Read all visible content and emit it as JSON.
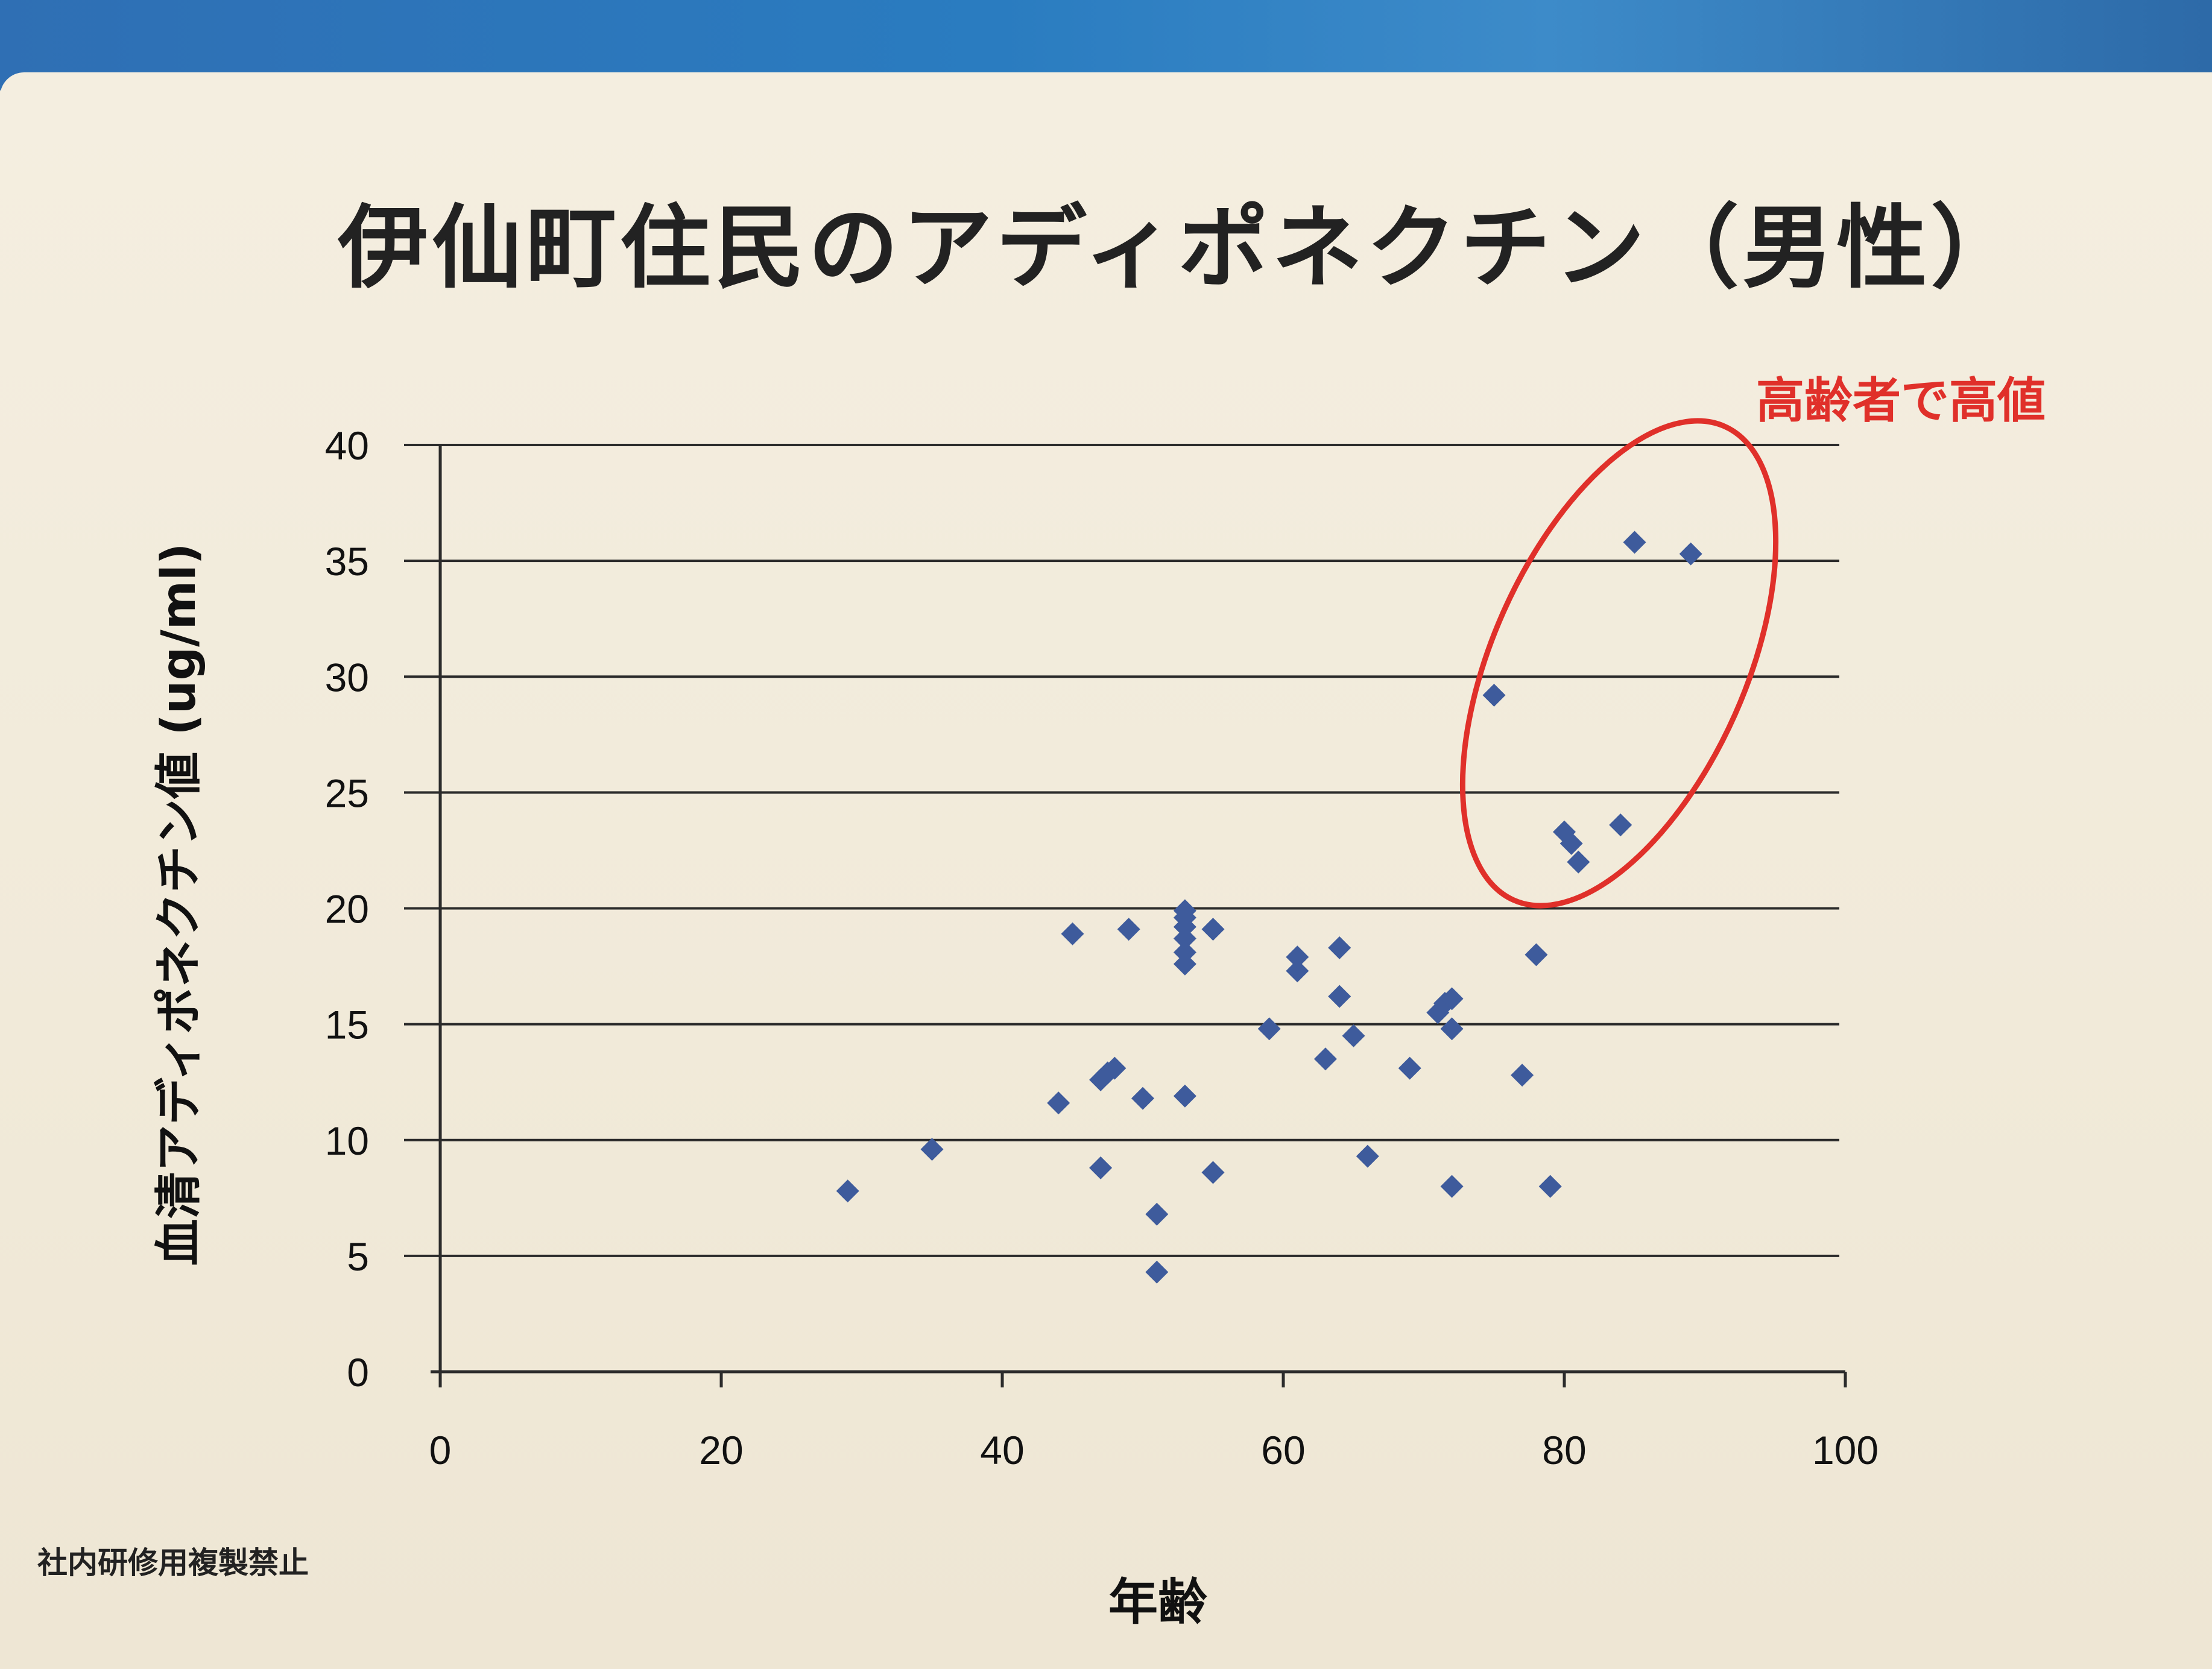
{
  "page": {
    "footer_note": "社内研修用複製禁止",
    "colors": {
      "background": "#f3ecdc",
      "header_band": "#2f6fb4",
      "marker": "#3e5b9c",
      "annotation": "#e0302a",
      "gridline": "#2b2b2b"
    }
  },
  "chart_data": {
    "type": "scatter",
    "title": "伊仙町住民のアディポネクチン（男性）",
    "xlabel": "年齢",
    "ylabel": "血清アディポネクチン値 (ug/ml)",
    "xlim": [
      0,
      100
    ],
    "ylim": [
      0,
      40
    ],
    "x_ticks": [
      0,
      20,
      40,
      60,
      80,
      100
    ],
    "y_ticks": [
      0,
      5,
      10,
      15,
      20,
      25,
      30,
      35,
      40
    ],
    "grid": "horizontal",
    "legend": "none",
    "marker": "diamond",
    "annotation": {
      "text": "高齢者で高値",
      "shape": "ellipse",
      "color": "#e0302a"
    },
    "series": [
      {
        "marker_color": "#3e5b9c",
        "x": [
          29,
          35,
          44,
          45,
          47,
          47,
          47.5,
          48,
          49,
          50,
          51,
          51,
          53,
          53,
          53,
          53,
          53,
          53,
          53,
          55,
          55,
          59,
          61,
          61,
          63,
          64,
          64,
          65,
          66,
          69,
          71,
          71.5,
          72,
          72,
          72,
          75,
          77,
          78,
          79,
          80,
          80.5,
          81,
          84,
          85,
          89
        ],
        "y": [
          7.8,
          9.6,
          11.6,
          18.9,
          12.6,
          8.8,
          12.9,
          13.1,
          19.1,
          11.8,
          6.8,
          4.3,
          11.9,
          17.6,
          18.1,
          18.7,
          19.2,
          19.6,
          19.9,
          19.1,
          8.6,
          14.8,
          17.3,
          17.9,
          13.5,
          16.2,
          18.3,
          14.5,
          9.3,
          13.1,
          15.5,
          15.9,
          14.8,
          16.1,
          8.0,
          29.2,
          12.8,
          18.0,
          8.0,
          23.3,
          22.8,
          22.0,
          23.6,
          35.8,
          35.3
        ]
      }
    ]
  }
}
